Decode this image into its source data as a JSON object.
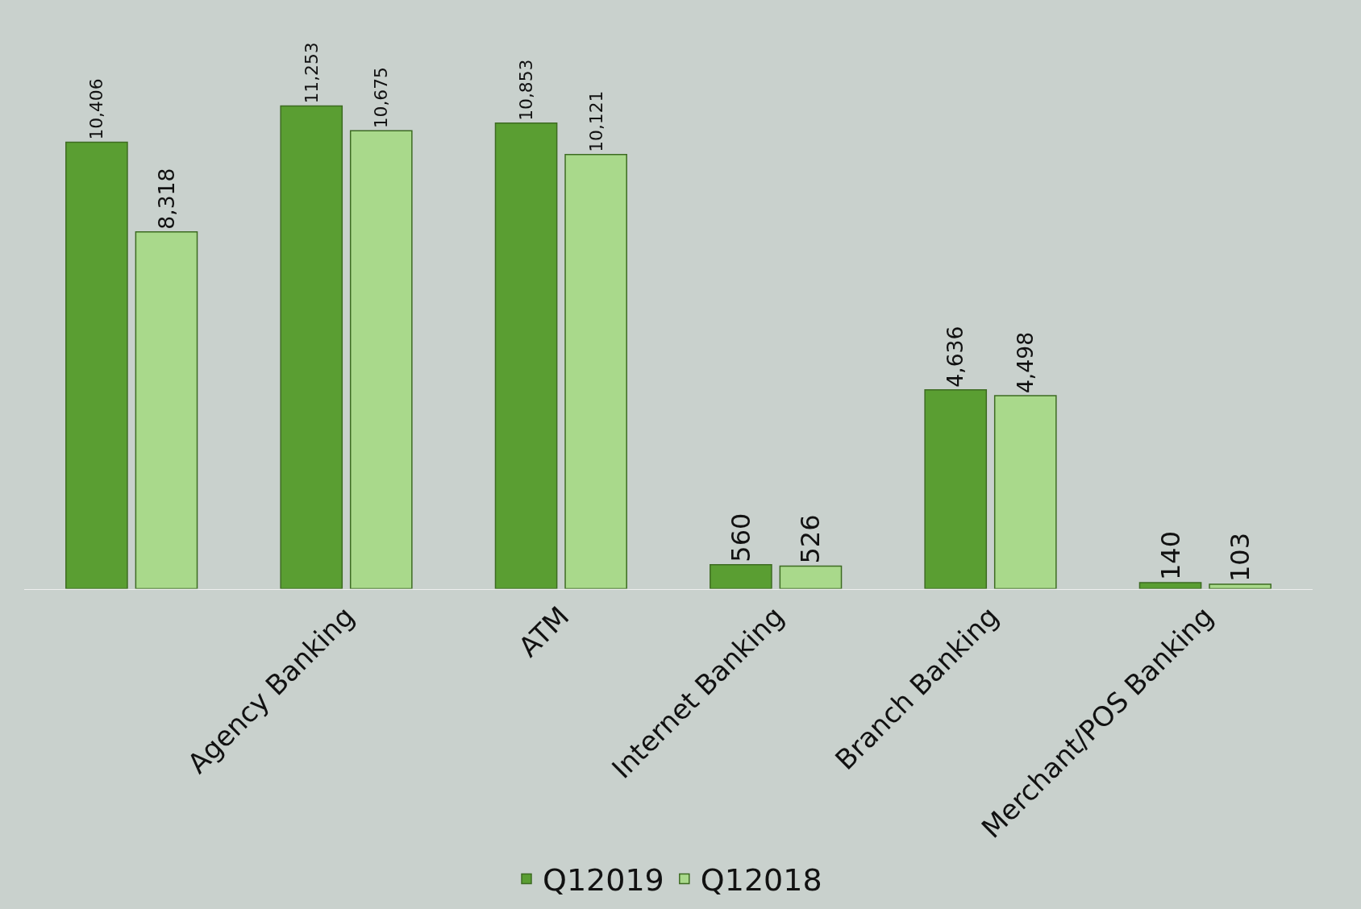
{
  "chart_data": {
    "type": "bar",
    "categories": [
      null,
      "Agency Banking",
      "ATM",
      "Internet Banking",
      "Branch Banking",
      "Merchant/POS Banking"
    ],
    "series": [
      {
        "name": "Q12019",
        "color": "#5a9e32",
        "values": [
          10406,
          11253,
          10853,
          560,
          4636,
          140
        ],
        "value_labels": [
          "10,406",
          "11,253",
          "10,853",
          "560",
          "4,636",
          "140"
        ]
      },
      {
        "name": "Q12018",
        "color": "#a9d98b",
        "values": [
          8318,
          10675,
          10121,
          526,
          4498,
          103
        ],
        "value_labels": [
          "8,318",
          "10,675",
          "10,121",
          "526",
          "4,498",
          "103"
        ]
      }
    ],
    "legend": "bottom",
    "grid": false
  }
}
